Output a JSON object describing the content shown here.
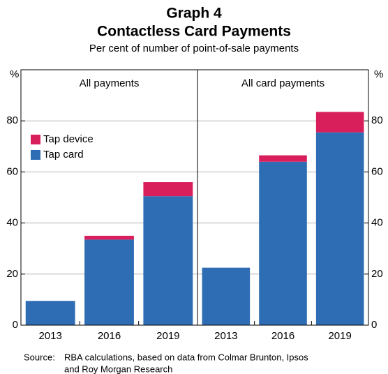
{
  "header": {
    "label": "Graph 4",
    "title": "Contactless Card Payments",
    "subtitle": "Per cent of number of point-of-sale payments"
  },
  "source": {
    "label": "Source:",
    "lines": [
      "RBA calculations, based on data from Colmar Brunton, Ipsos",
      "and Roy Morgan Research"
    ]
  },
  "chart_data": [
    {
      "type": "bar",
      "stacked": true,
      "title": "All payments",
      "ylabel": "%",
      "axis_side": "left",
      "categories": [
        "2013",
        "2016",
        "2019"
      ],
      "series": [
        {
          "name": "Tap card",
          "color": "#2e6db4",
          "values": [
            9.5,
            33.5,
            50.5
          ]
        },
        {
          "name": "Tap device",
          "color": "#d81e5b",
          "values": [
            0,
            1.5,
            5.5
          ]
        }
      ],
      "ylim": [
        0,
        100
      ],
      "yticks": [
        0,
        20,
        40,
        60,
        80
      ],
      "grid": true,
      "legend": "upper left"
    },
    {
      "type": "bar",
      "stacked": true,
      "title": "All card payments",
      "ylabel": "%",
      "axis_side": "right",
      "categories": [
        "2013",
        "2016",
        "2019"
      ],
      "series": [
        {
          "color": "#2e6db4",
          "values": [
            22.5,
            64,
            75.5
          ]
        },
        {
          "color": "#d81e5b",
          "values": [
            0,
            2.5,
            8
          ]
        }
      ],
      "ylim": [
        0,
        100
      ],
      "yticks": [
        0,
        20,
        40,
        60,
        80
      ],
      "grid": true
    }
  ]
}
